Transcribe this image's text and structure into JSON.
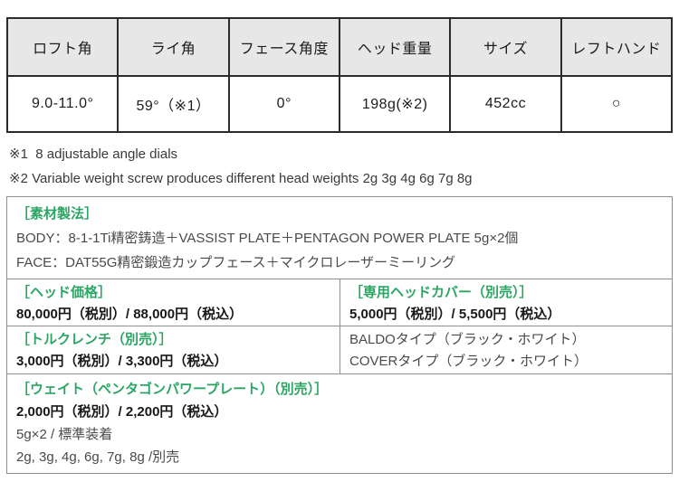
{
  "colors": {
    "accent_green": "#2ca564",
    "spec_border": "#2b2b2b",
    "detail_border": "#8f8f8f",
    "header_bg": "#e7e7e7"
  },
  "spec_table": {
    "columns": [
      {
        "header": "ロフト角",
        "value": "9.0-11.0°"
      },
      {
        "header": "ライ角",
        "value": "59°（※1）"
      },
      {
        "header": "フェース角度",
        "value": "0°"
      },
      {
        "header": "ヘッド重量",
        "value": "198g(※2)"
      },
      {
        "header": "サイズ",
        "value": "452cc"
      },
      {
        "header": "レフトハンド",
        "value": "○"
      }
    ]
  },
  "notes": [
    "※1  8 adjustable angle dials",
    "※2 Variable weight screw produces different head weights 2g 3g 4g 6g 7g 8g"
  ],
  "details": {
    "material": {
      "title": "［素材製法］",
      "body_line": "BODY：8-1-1Ti精密鋳造＋VASSIST PLATE＋PENTAGON POWER PLATE 5g×2個",
      "face_line": "FACE：DAT55G精密鍛造カップフェース＋マイクロレーザーミーリング"
    },
    "head_price": {
      "title": "［ヘッド価格］",
      "price": "80,000円（税別）/ 88,000円（税込）"
    },
    "head_cover": {
      "title": "［専用ヘッドカバー（別売）］",
      "price": "5,000円（税別）/ 5,500円（税込）",
      "type_line_1": "BALDOタイプ（ブラック・ホワイト）",
      "type_line_2": "COVERタイプ（ブラック・ホワイト）"
    },
    "torque_wrench": {
      "title": "［トルクレンチ（別売）］",
      "price": "3,000円（税別）/ 3,300円（税込）"
    },
    "weight": {
      "title": "［ウェイト（ペンタゴンパワープレート）（別売）］",
      "price": "2,000円（税別）/ 2,200円（税込）",
      "standard_line": "5g×2 / 標準装着",
      "optional_line": "2g, 3g, 4g, 6g, 7g, 8g /別売"
    }
  }
}
